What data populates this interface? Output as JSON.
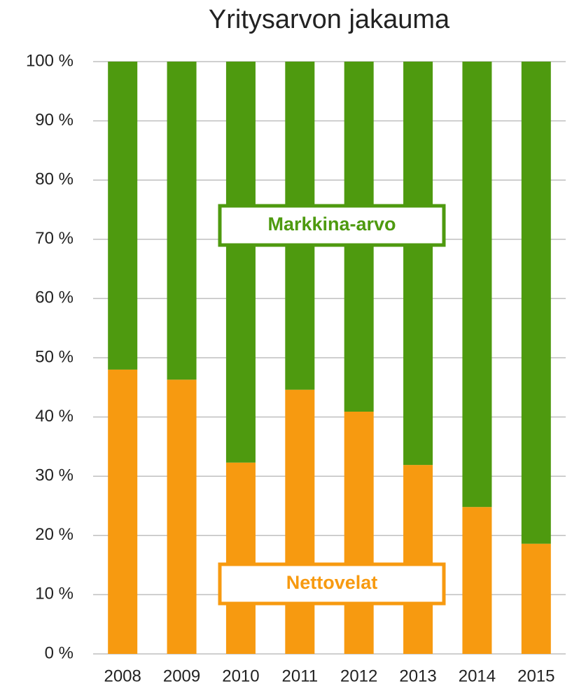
{
  "chart_data": {
    "type": "stacked_bar",
    "title": "Yritysarvon jakauma",
    "categories": [
      "2008",
      "2009",
      "2010",
      "2011",
      "2012",
      "2013",
      "2014",
      "2015"
    ],
    "series": [
      {
        "name": "Nettovelat",
        "color": "#f79a10",
        "values": [
          48,
          46.3,
          32.3,
          44.6,
          40.9,
          31.9,
          24.8,
          18.6
        ]
      },
      {
        "name": "Markkina-arvo",
        "color": "#4e9a0f",
        "values": [
          52,
          53.7,
          67.7,
          55.4,
          59.1,
          68.1,
          75.2,
          81.4
        ]
      }
    ],
    "ylim": [
      0,
      100
    ],
    "yticks": [
      {
        "value": 0,
        "label": "0 %"
      },
      {
        "value": 10,
        "label": "10 %"
      },
      {
        "value": 20,
        "label": "20 %"
      },
      {
        "value": 30,
        "label": "30 %"
      },
      {
        "value": 40,
        "label": "40 %"
      },
      {
        "value": 50,
        "label": "50 %"
      },
      {
        "value": 60,
        "label": "60 %"
      },
      {
        "value": 70,
        "label": "70 %"
      },
      {
        "value": 80,
        "label": "80 %"
      },
      {
        "value": 90,
        "label": "90 %"
      },
      {
        "value": 100,
        "label": "100 %"
      }
    ],
    "grid": true
  }
}
